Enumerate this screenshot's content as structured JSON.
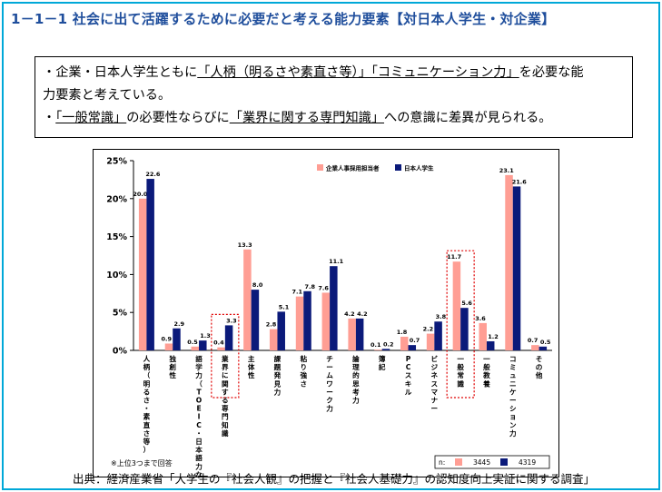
{
  "page": {
    "title": "1－1－1 社会に出て活躍するために必要だと考える能力要素【対日本人学生・対企業】",
    "summary": {
      "line1_parts": [
        "・企業・日本人学生ともに",
        "「人柄（明るさや素直さ等）」「コミュニケーション力」",
        "を必要な能"
      ],
      "line2": "力要素と考えている。",
      "line3_parts": [
        "・",
        "「一般常識」",
        "の必要性ならびに",
        "「業界に関する専門知識」",
        "への意識に差異が見られる。"
      ]
    },
    "footnote": "※上位3つまで回答",
    "source": "出典：経済産業省「大学生の『社会人観』の把握と『社会人基礎力』の認知度向上実証に関する調査」"
  },
  "chart_data": {
    "type": "bar",
    "categories": [
      "人柄（明るさ・素直さ等）",
      "独創性",
      "語学力（TOEIC・日本語力など）",
      "業界に関する専門知識",
      "主体性",
      "課題発見力",
      "粘り強さ",
      "チームワーク力",
      "論理的思考力",
      "簿記",
      "PCスキル",
      "ビジネスマナー",
      "一般常識",
      "一般教養",
      "コミュニケーション力",
      "その他"
    ],
    "series": [
      {
        "name": "企業人事採用担当者",
        "n": "3445",
        "color": "#ff9e94",
        "values": [
          20.0,
          0.9,
          0.5,
          0.4,
          13.3,
          2.8,
          7.1,
          7.6,
          4.2,
          0.1,
          1.8,
          2.2,
          11.7,
          3.6,
          23.1,
          0.7
        ]
      },
      {
        "name": "日本人学生",
        "n": "4319",
        "color": "#0b1a7a",
        "values": [
          22.6,
          2.9,
          1.3,
          3.3,
          8.0,
          5.1,
          7.8,
          11.1,
          4.2,
          0.2,
          0.7,
          3.8,
          5.6,
          1.2,
          21.6,
          0.5
        ]
      }
    ],
    "value_labels": [
      [
        "20.0",
        "0.9",
        "0.5",
        "0.4",
        "13.3",
        "2.8",
        "7.1",
        "7.6",
        "4.2",
        "0.1",
        "1.8",
        "2.2",
        "11.7",
        "3.6",
        "23.1",
        "0.7"
      ],
      [
        "22.6",
        "2.9",
        "1.3",
        "3.3",
        "8.0",
        "5.1",
        "7.8",
        "11.1",
        "4.2",
        "0.2",
        "0.7",
        "3.8",
        "5.6",
        "1.2",
        "21.6",
        "0.5"
      ]
    ],
    "y_ticks": [
      "0%",
      "5%",
      "10%",
      "15%",
      "20%",
      "25%"
    ],
    "ylim": [
      0,
      25
    ],
    "n_label": "n:",
    "highlighted": [
      "業界に関する専門知識",
      "一般常識"
    ],
    "legend_placement": "top-center",
    "grid": false
  }
}
